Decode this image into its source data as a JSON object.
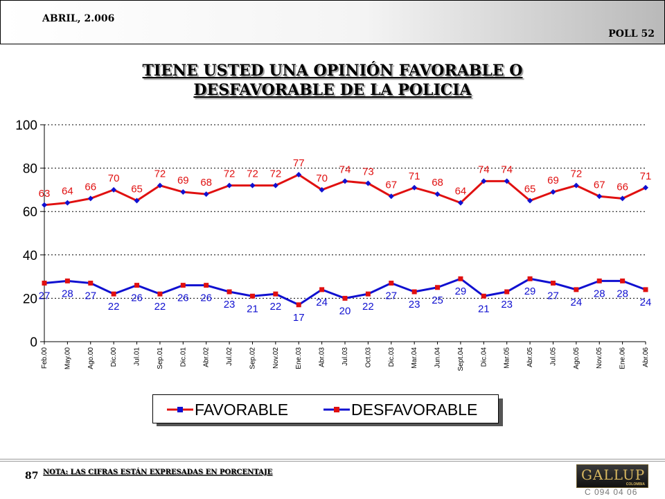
{
  "header": {
    "date": "ABRIL, 2.006",
    "poll": "POLL 52"
  },
  "title_line1": "TIENE USTED UNA OPINIÓN FAVORABLE O",
  "title_line2": "DESFAVORABLE DE LA POLICIA",
  "legend": {
    "favorable": "FAVORABLE",
    "desfavorable": "DESFAVORABLE"
  },
  "footer": {
    "page": "87",
    "note": "NOTA: LAS CIFRAS ESTÁN EXPRESADAS EN PORCENTAJE",
    "code": "C 094 04 06"
  },
  "logo": {
    "text": "GALLUP",
    "sub": "COLOMBIA"
  },
  "colors": {
    "favorable": "#e01010",
    "desfavorable": "#1010d0",
    "label": "#e01010",
    "grid": "#000000"
  },
  "chart_data": {
    "type": "line",
    "categories": [
      "Feb.00",
      "May.00",
      "Ago.00",
      "Dic.00",
      "Jul.01",
      "Sep.01",
      "Dic.01",
      "Abr.02",
      "Jul.02",
      "Sep.02",
      "Nov.02",
      "Ene.03",
      "Abr.03",
      "Jul.03",
      "Oct.03",
      "Dic.03",
      "Mar.04",
      "Jun.04",
      "Sept.04",
      "Dic.04",
      "Mar.05",
      "Abr.05",
      "Jul.05",
      "Ago.05",
      "Nov.05",
      "Ene.06",
      "Abr.06"
    ],
    "series": [
      {
        "name": "FAVORABLE",
        "values": [
          63,
          64,
          66,
          70,
          65,
          72,
          69,
          68,
          72,
          72,
          72,
          77,
          70,
          74,
          73,
          67,
          71,
          68,
          64,
          74,
          74,
          65,
          69,
          72,
          67,
          66,
          71
        ]
      },
      {
        "name": "DESFAVORABLE",
        "values": [
          27,
          28,
          27,
          22,
          26,
          22,
          26,
          26,
          23,
          21,
          22,
          17,
          24,
          20,
          22,
          27,
          23,
          25,
          29,
          21,
          23,
          29,
          27,
          24,
          28,
          28,
          24
        ]
      }
    ],
    "yticks": [
      0,
      20,
      40,
      60,
      80,
      100
    ],
    "ylim": [
      0,
      100
    ],
    "grid": "dashed horizontal",
    "legend": "bottom"
  }
}
